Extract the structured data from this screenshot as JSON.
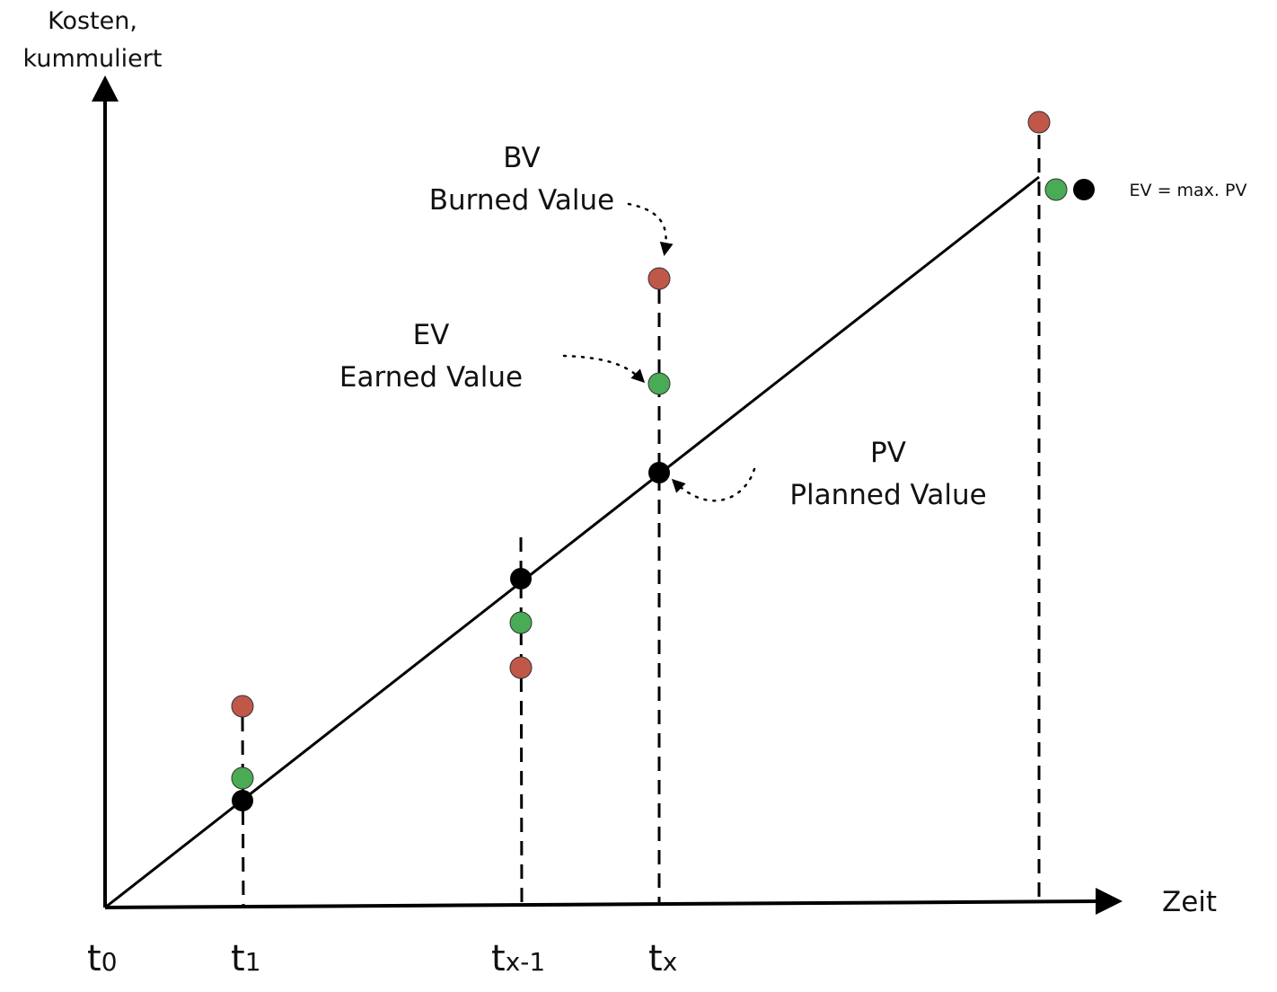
{
  "axes": {
    "y_label_line1": "Kosten,",
    "y_label_line2": "kummuliert",
    "x_label": "Zeit"
  },
  "ticks": [
    {
      "main": "t",
      "sub": "0"
    },
    {
      "main": "t",
      "sub": "1"
    },
    {
      "main": "t",
      "sub": "x-1"
    },
    {
      "main": "t",
      "sub": "x"
    }
  ],
  "labels": {
    "bv_abbr": "BV",
    "bv_name": "Burned Value",
    "ev_abbr": "EV",
    "ev_name": "Earned Value",
    "pv_abbr": "PV",
    "pv_name": "Planned Value",
    "end_note": "EV = max. PV"
  },
  "colors": {
    "burned": "#c0584a",
    "earned": "#4aab55",
    "planned": "#000000",
    "line": "#000000"
  }
}
